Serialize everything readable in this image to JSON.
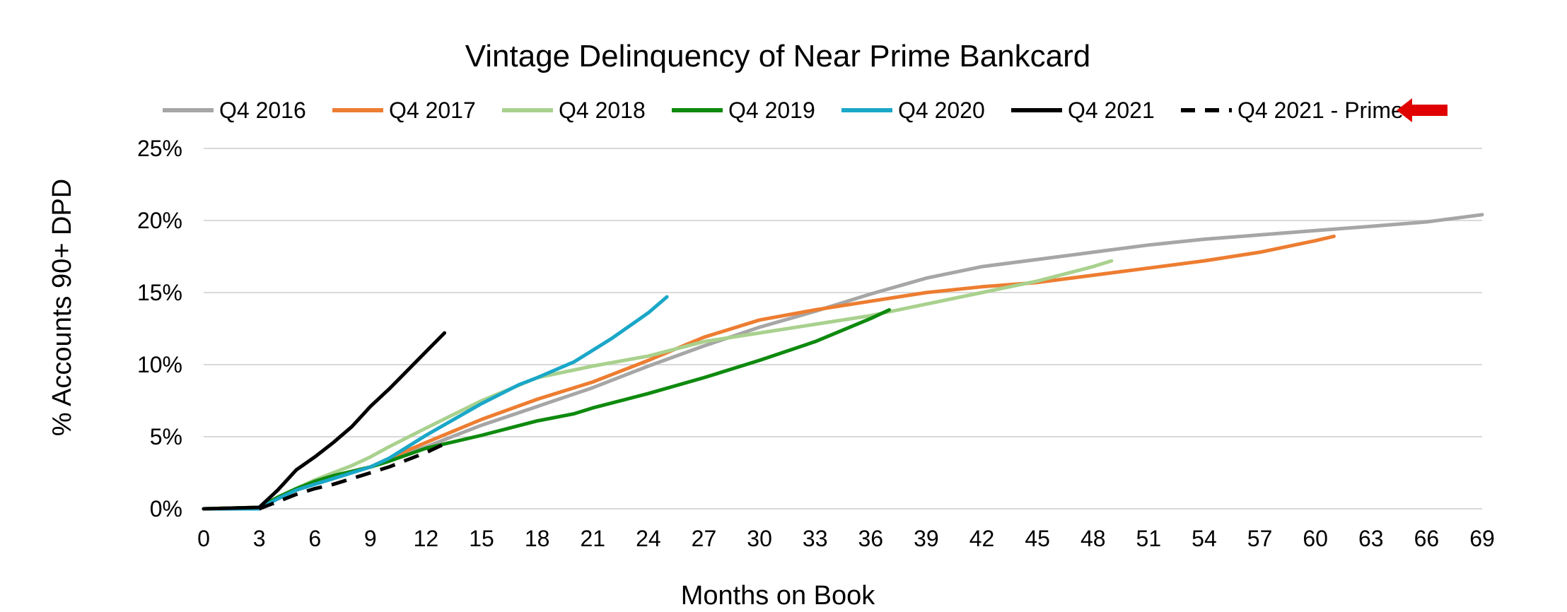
{
  "chart_data": {
    "type": "line",
    "title": "Vintage Delinquency of Near Prime Bankcard",
    "xlabel": "Months on Book",
    "ylabel": "% Accounts 90+ DPD",
    "xlim": [
      0,
      69
    ],
    "ylim": [
      0,
      25
    ],
    "x_ticks": [
      0,
      3,
      6,
      9,
      12,
      15,
      18,
      21,
      24,
      27,
      30,
      33,
      36,
      39,
      42,
      45,
      48,
      51,
      54,
      57,
      60,
      63,
      66,
      69
    ],
    "x_tick_labels": [
      "0",
      "3",
      "6",
      "9",
      "12",
      "15",
      "18",
      "21",
      "24",
      "27",
      "30",
      "33",
      "36",
      "39",
      "42",
      "45",
      "48",
      "51",
      "54",
      "57",
      "60",
      "63",
      "66",
      "69"
    ],
    "y_ticks": [
      0,
      5,
      10,
      15,
      20,
      25
    ],
    "y_tick_labels": [
      "0%",
      "5%",
      "10%",
      "15%",
      "20%",
      "25%"
    ],
    "grid": "horizontal",
    "legend_position": "top",
    "legend_marker_arrow_color": "#e00000",
    "series": [
      {
        "name": "Q4 2016",
        "color": "#a6a6a6",
        "dash": "solid",
        "x": [
          0,
          3,
          4,
          5,
          6,
          7,
          8,
          9,
          10,
          12,
          15,
          18,
          21,
          24,
          27,
          30,
          33,
          36,
          39,
          42,
          45,
          48,
          51,
          54,
          57,
          60,
          63,
          66,
          69
        ],
        "y": [
          0,
          0.1,
          0.7,
          1.3,
          1.8,
          2.2,
          2.6,
          2.9,
          3.4,
          4.3,
          5.8,
          7.1,
          8.4,
          9.9,
          11.3,
          12.6,
          13.7,
          14.9,
          16.0,
          16.8,
          17.3,
          17.8,
          18.3,
          18.7,
          19.0,
          19.3,
          19.6,
          19.9,
          20.4
        ]
      },
      {
        "name": "Q4 2017",
        "color": "#ed7d31",
        "dash": "solid",
        "x": [
          0,
          3,
          4,
          5,
          6,
          7,
          8,
          9,
          10,
          12,
          15,
          18,
          21,
          24,
          27,
          30,
          33,
          36,
          39,
          42,
          45,
          48,
          51,
          54,
          57,
          60,
          61
        ],
        "y": [
          0,
          0.1,
          0.7,
          1.3,
          1.8,
          2.2,
          2.6,
          2.9,
          3.5,
          4.6,
          6.2,
          7.6,
          8.8,
          10.3,
          11.9,
          13.1,
          13.8,
          14.4,
          15.0,
          15.4,
          15.7,
          16.2,
          16.7,
          17.2,
          17.8,
          18.6,
          18.9
        ]
      },
      {
        "name": "Q4 2018",
        "color": "#a9d18e",
        "dash": "solid",
        "x": [
          0,
          3,
          4,
          5,
          6,
          7,
          8,
          9,
          10,
          12,
          15,
          18,
          21,
          24,
          27,
          30,
          33,
          36,
          39,
          42,
          45,
          48,
          49
        ],
        "y": [
          0,
          0.1,
          0.8,
          1.4,
          2.0,
          2.5,
          3.0,
          3.6,
          4.3,
          5.6,
          7.5,
          9.1,
          9.9,
          10.6,
          11.6,
          12.2,
          12.8,
          13.4,
          14.2,
          15.0,
          15.8,
          16.8,
          17.2
        ]
      },
      {
        "name": "Q4 2019",
        "color": "#0e8a0e",
        "dash": "solid",
        "x": [
          0,
          3,
          4,
          5,
          6,
          7,
          8,
          9,
          10,
          12,
          15,
          18,
          20,
          21,
          24,
          27,
          30,
          33,
          36,
          37
        ],
        "y": [
          0,
          0.1,
          0.8,
          1.4,
          1.9,
          2.3,
          2.6,
          2.9,
          3.3,
          4.2,
          5.1,
          6.1,
          6.6,
          7.0,
          8.0,
          9.1,
          10.3,
          11.6,
          13.2,
          13.8
        ]
      },
      {
        "name": "Q4 2020",
        "color": "#1aa7c8",
        "dash": "solid",
        "x": [
          0,
          3,
          4,
          5,
          6,
          7,
          8,
          9,
          10,
          12,
          15,
          17,
          18,
          20,
          21,
          22,
          24,
          25
        ],
        "y": [
          0,
          0,
          0.7,
          1.3,
          1.7,
          2.1,
          2.5,
          2.9,
          3.5,
          5.1,
          7.3,
          8.6,
          9.1,
          10.2,
          11.0,
          11.8,
          13.6,
          14.7
        ]
      },
      {
        "name": "Q4 2021",
        "color": "#000000",
        "dash": "solid",
        "x": [
          0,
          3,
          4,
          5,
          6,
          7,
          8,
          9,
          10,
          11,
          12,
          13
        ],
        "y": [
          0,
          0.1,
          1.3,
          2.7,
          3.6,
          4.6,
          5.7,
          7.1,
          8.3,
          9.6,
          10.9,
          12.2
        ]
      },
      {
        "name": "Q4 2021 - Prime",
        "color": "#000000",
        "dash": "dashed",
        "x": [
          3,
          4,
          5,
          6,
          7,
          8,
          9,
          10,
          11,
          12,
          13
        ],
        "y": [
          0,
          0.5,
          1.0,
          1.4,
          1.7,
          2.1,
          2.5,
          2.9,
          3.4,
          3.9,
          4.5
        ]
      }
    ]
  }
}
